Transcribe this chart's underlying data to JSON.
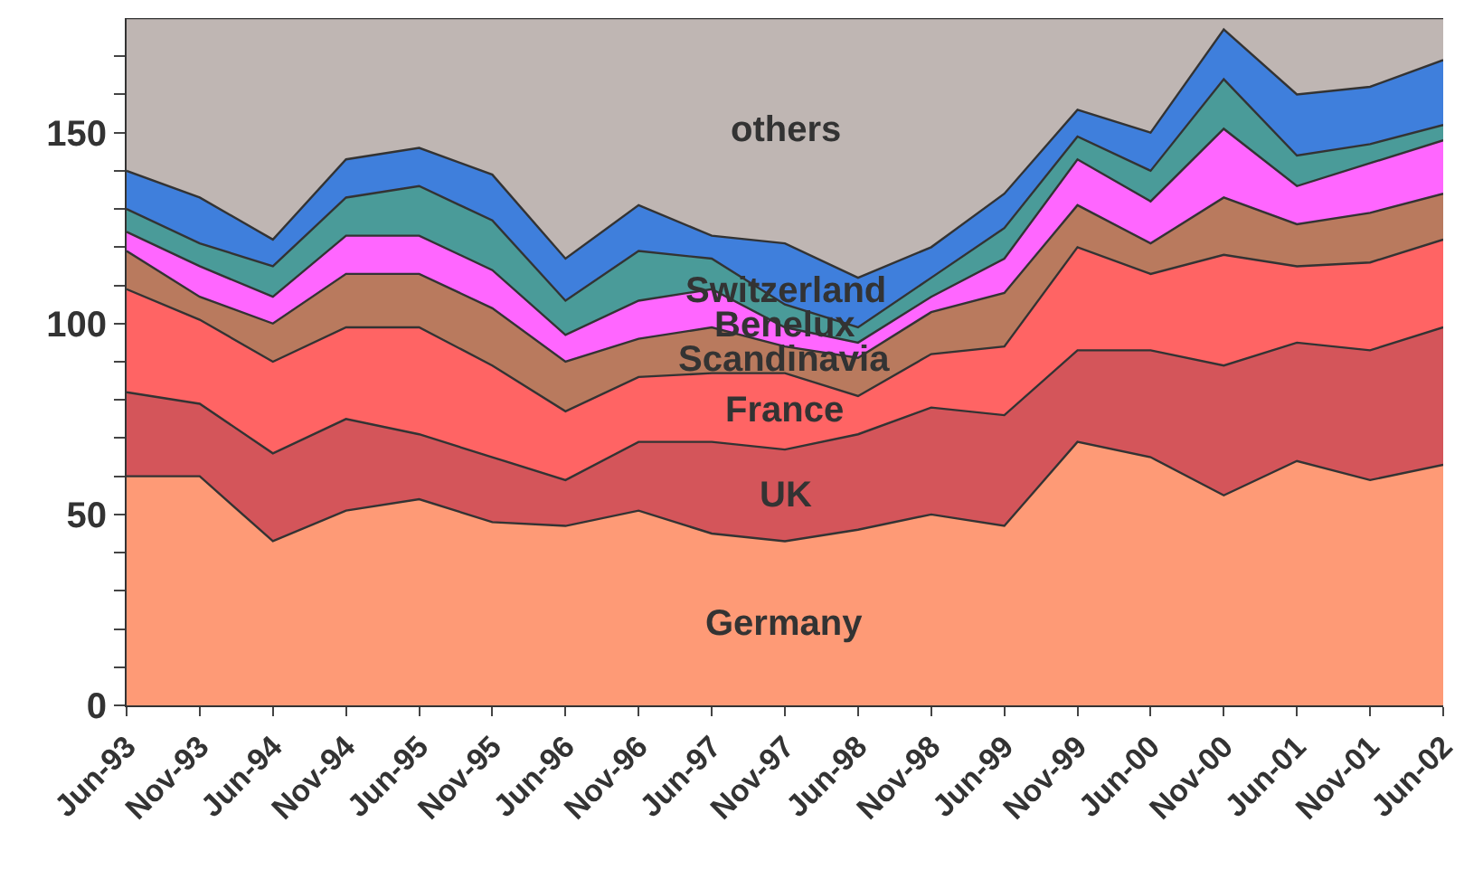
{
  "chart_data": {
    "type": "area",
    "stacked": true,
    "legend": false,
    "categories": [
      "Jun-93",
      "Nov-93",
      "Jun-94",
      "Nov-94",
      "Jun-95",
      "Nov-95",
      "Jun-96",
      "Nov-96",
      "Jun-97",
      "Nov-97",
      "Jun-98",
      "Nov-98",
      "Jun-99",
      "Nov-99",
      "Jun-00",
      "Nov-00",
      "Jun-01",
      "Nov-01",
      "Jun-02"
    ],
    "ylim": [
      0,
      180
    ],
    "yticks": [
      0,
      {
        "value": 10,
        "label": null
      },
      {
        "value": 20,
        "label": null
      },
      {
        "value": 30,
        "label": null
      },
      {
        "value": 40,
        "label": null
      },
      50,
      {
        "value": 60,
        "label": null
      },
      {
        "value": 70,
        "label": null
      },
      {
        "value": 80,
        "label": null
      },
      {
        "value": 90,
        "label": null
      },
      100,
      {
        "value": 110,
        "label": null
      },
      {
        "value": 120,
        "label": null
      },
      {
        "value": 130,
        "label": null
      },
      {
        "value": 140,
        "label": null
      },
      150,
      {
        "value": 160,
        "label": null
      },
      {
        "value": 170,
        "label": null
      }
    ],
    "series": [
      {
        "name": "Germany",
        "color": "#fe9a76",
        "values": [
          60,
          60,
          43,
          51,
          54,
          48,
          47,
          51,
          45,
          43,
          46,
          50,
          47,
          69,
          65,
          55,
          64,
          59,
          63
        ]
      },
      {
        "name": "UK",
        "color": "#d4555a",
        "values": [
          22,
          19,
          23,
          24,
          17,
          17,
          12,
          18,
          24,
          24,
          25,
          28,
          29,
          24,
          28,
          34,
          31,
          34,
          36
        ]
      },
      {
        "name": "France",
        "color": "#ff6464",
        "values": [
          27,
          22,
          24,
          24,
          28,
          24,
          18,
          17,
          18,
          20,
          10,
          14,
          18,
          27,
          20,
          29,
          20,
          23,
          23
        ]
      },
      {
        "name": "Scandinavia",
        "color": "#b97a5e",
        "values": [
          10,
          6,
          10,
          14,
          14,
          15,
          13,
          10,
          12,
          7,
          10,
          11,
          14,
          11,
          8,
          15,
          11,
          13,
          12
        ]
      },
      {
        "name": "Benelux",
        "color": "#ff66ff",
        "values": [
          5,
          8,
          7,
          10,
          10,
          10,
          7,
          10,
          10,
          5,
          4,
          4,
          9,
          12,
          11,
          18,
          10,
          13,
          14
        ]
      },
      {
        "name": "Switzerland",
        "color": "#4a9b99",
        "values": [
          6,
          6,
          8,
          10,
          13,
          13,
          9,
          13,
          8,
          6,
          4,
          5,
          8,
          6,
          8,
          13,
          8,
          5,
          4
        ]
      },
      {
        "color": "#3f7fdc",
        "values": [
          10,
          12,
          7,
          10,
          10,
          12,
          11,
          12,
          6,
          16,
          13,
          8,
          9,
          7,
          10,
          13,
          16,
          15,
          17
        ]
      },
      {
        "name": "others",
        "color": "#bfb6b3",
        "values": [
          40,
          47,
          58,
          37,
          34,
          41,
          63,
          49,
          57,
          59,
          68,
          60,
          46,
          24,
          30,
          3,
          20,
          18,
          11
        ]
      }
    ]
  }
}
